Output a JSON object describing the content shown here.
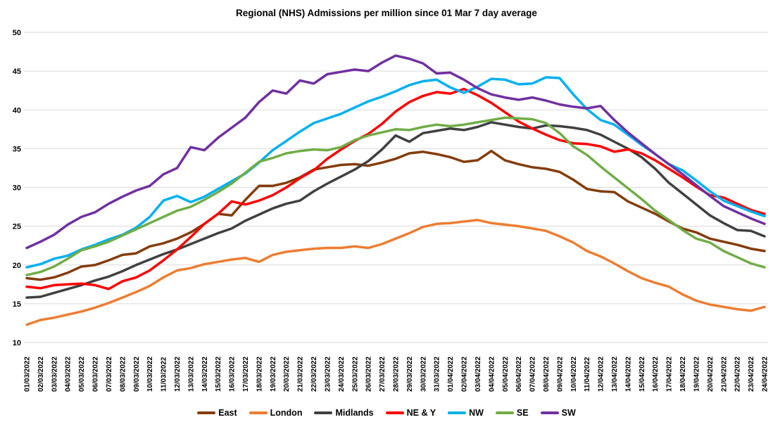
{
  "chart_data": {
    "type": "line",
    "title": "Regional (NHS) Admissions per million since 01 Mar 7 day average",
    "xlabel": "",
    "ylabel": "",
    "ylim": [
      10,
      50
    ],
    "yticks": [
      10,
      15,
      20,
      25,
      30,
      35,
      40,
      45,
      50
    ],
    "grid": "horizontal",
    "legend_position": "bottom",
    "x": [
      "01/03/2022",
      "02/03/2022",
      "03/03/2022",
      "04/03/2022",
      "05/03/2022",
      "06/03/2022",
      "07/03/2022",
      "08/03/2022",
      "09/03/2022",
      "10/03/2022",
      "11/03/2022",
      "12/03/2022",
      "13/03/2022",
      "14/03/2022",
      "15/03/2022",
      "16/03/2022",
      "17/03/2022",
      "18/03/2022",
      "19/03/2022",
      "20/03/2022",
      "21/03/2022",
      "22/03/2022",
      "23/03/2022",
      "24/03/2022",
      "25/03/2022",
      "26/03/2022",
      "27/03/2022",
      "28/03/2022",
      "29/03/2022",
      "30/03/2022",
      "31/03/2022",
      "01/04/2022",
      "02/04/2022",
      "03/04/2022",
      "04/04/2022",
      "05/04/2022",
      "06/04/2022",
      "07/04/2022",
      "08/04/2022",
      "09/04/2022",
      "10/04/2022",
      "11/04/2022",
      "12/04/2022",
      "13/04/2022",
      "14/04/2022",
      "15/04/2022",
      "16/04/2022",
      "17/04/2022",
      "18/04/2022",
      "19/04/2022",
      "20/04/2022",
      "21/04/2022",
      "22/04/2022",
      "23/04/2022",
      "24/04/2022"
    ],
    "series": [
      {
        "name": "East",
        "color": "#843C0C",
        "values": [
          18.3,
          18.1,
          18.4,
          19.0,
          19.8,
          20.0,
          20.6,
          21.3,
          21.5,
          22.4,
          22.8,
          23.4,
          24.2,
          25.3,
          26.6,
          26.4,
          28.4,
          30.2,
          30.2,
          30.6,
          31.3,
          32.3,
          32.6,
          32.9,
          33.0,
          32.8,
          33.2,
          33.7,
          34.4,
          34.6,
          34.3,
          33.9,
          33.3,
          33.5,
          34.7,
          33.5,
          33.0,
          32.6,
          32.4,
          32.0,
          31.0,
          29.8,
          29.5,
          29.4,
          28.2,
          27.4,
          26.6,
          25.6,
          24.7,
          24.2,
          23.4,
          23.0,
          22.6,
          22.1,
          21.8
        ]
      },
      {
        "name": "London",
        "color": "#ED7D31",
        "values": [
          12.3,
          12.9,
          13.2,
          13.6,
          14.0,
          14.5,
          15.1,
          15.8,
          16.5,
          17.3,
          18.4,
          19.3,
          19.6,
          20.1,
          20.4,
          20.7,
          20.9,
          20.4,
          21.3,
          21.7,
          21.9,
          22.1,
          22.2,
          22.2,
          22.4,
          22.2,
          22.7,
          23.4,
          24.1,
          24.9,
          25.3,
          25.4,
          25.6,
          25.8,
          25.4,
          25.2,
          25.0,
          24.7,
          24.4,
          23.7,
          22.9,
          21.8,
          21.1,
          20.2,
          19.2,
          18.3,
          17.7,
          17.2,
          16.2,
          15.4,
          14.9,
          14.6,
          14.3,
          14.1,
          14.6
        ]
      },
      {
        "name": "Midlands",
        "color": "#404040",
        "values": [
          15.8,
          15.9,
          16.4,
          16.9,
          17.4,
          18.0,
          18.5,
          19.2,
          20.0,
          20.7,
          21.4,
          22.0,
          22.7,
          23.4,
          24.1,
          24.7,
          25.7,
          26.5,
          27.3,
          27.9,
          28.3,
          29.5,
          30.5,
          31.4,
          32.3,
          33.4,
          34.9,
          36.7,
          35.9,
          37.0,
          37.3,
          37.6,
          37.4,
          37.8,
          38.4,
          38.1,
          37.8,
          37.6,
          38.0,
          37.9,
          37.7,
          37.4,
          36.8,
          35.9,
          35.0,
          33.9,
          32.4,
          30.6,
          29.2,
          27.8,
          26.4,
          25.4,
          24.5,
          24.4,
          23.7
        ]
      },
      {
        "name": "NE & Y",
        "color": "#FF0000",
        "values": [
          17.2,
          17.0,
          17.4,
          17.5,
          17.6,
          17.4,
          16.9,
          17.9,
          18.4,
          19.3,
          20.6,
          22.0,
          23.6,
          25.3,
          26.6,
          28.2,
          27.8,
          28.3,
          29.0,
          30.0,
          31.2,
          32.2,
          33.7,
          34.9,
          36.0,
          36.9,
          38.2,
          39.8,
          41.0,
          41.8,
          42.3,
          42.1,
          42.7,
          41.9,
          40.9,
          39.7,
          38.5,
          37.6,
          36.8,
          36.1,
          35.7,
          35.6,
          35.3,
          34.6,
          34.9,
          34.4,
          33.5,
          32.4,
          31.3,
          30.1,
          29.0,
          28.7,
          27.9,
          27.1,
          26.6
        ]
      },
      {
        "name": "NW",
        "color": "#00B0F0",
        "values": [
          19.7,
          20.1,
          20.8,
          21.2,
          22.0,
          22.6,
          23.3,
          23.9,
          24.8,
          26.2,
          28.3,
          28.9,
          28.1,
          28.8,
          29.8,
          30.8,
          31.8,
          33.2,
          34.8,
          36.0,
          37.2,
          38.3,
          38.9,
          39.5,
          40.3,
          41.1,
          41.7,
          42.4,
          43.2,
          43.7,
          43.9,
          42.9,
          42.2,
          43.0,
          44.0,
          43.9,
          43.3,
          43.4,
          44.2,
          44.1,
          42.0,
          40.1,
          38.7,
          38.1,
          36.8,
          35.5,
          34.3,
          33.0,
          32.2,
          30.9,
          29.5,
          28.3,
          27.6,
          26.9,
          26.3
        ]
      },
      {
        "name": "SE",
        "color": "#70AD47",
        "values": [
          18.7,
          19.1,
          19.8,
          20.8,
          21.9,
          22.4,
          23.0,
          23.8,
          24.6,
          25.4,
          26.2,
          27.0,
          27.5,
          28.4,
          29.4,
          30.5,
          31.9,
          33.3,
          33.8,
          34.4,
          34.7,
          34.9,
          34.8,
          35.2,
          36.1,
          36.7,
          37.1,
          37.5,
          37.4,
          37.8,
          38.1,
          37.9,
          38.1,
          38.4,
          38.7,
          39.0,
          38.9,
          38.8,
          38.3,
          37.0,
          35.3,
          34.2,
          32.7,
          31.3,
          29.9,
          28.5,
          27.0,
          25.8,
          24.5,
          23.4,
          22.9,
          21.8,
          21.0,
          20.2,
          19.7
        ]
      },
      {
        "name": "SW",
        "color": "#7030A0",
        "values": [
          22.2,
          23.0,
          23.9,
          25.2,
          26.2,
          26.8,
          27.9,
          28.8,
          29.6,
          30.2,
          31.7,
          32.5,
          35.2,
          34.8,
          36.4,
          37.7,
          39.0,
          41.0,
          42.5,
          42.1,
          43.8,
          43.4,
          44.6,
          44.9,
          45.2,
          45.0,
          46.1,
          47.0,
          46.6,
          46.0,
          44.7,
          44.8,
          43.9,
          42.8,
          42.0,
          41.6,
          41.3,
          41.6,
          41.2,
          40.7,
          40.4,
          40.2,
          40.5,
          38.7,
          37.1,
          35.7,
          34.3,
          33.0,
          31.7,
          30.3,
          28.9,
          27.6,
          26.8,
          26.0,
          25.3
        ]
      }
    ]
  }
}
